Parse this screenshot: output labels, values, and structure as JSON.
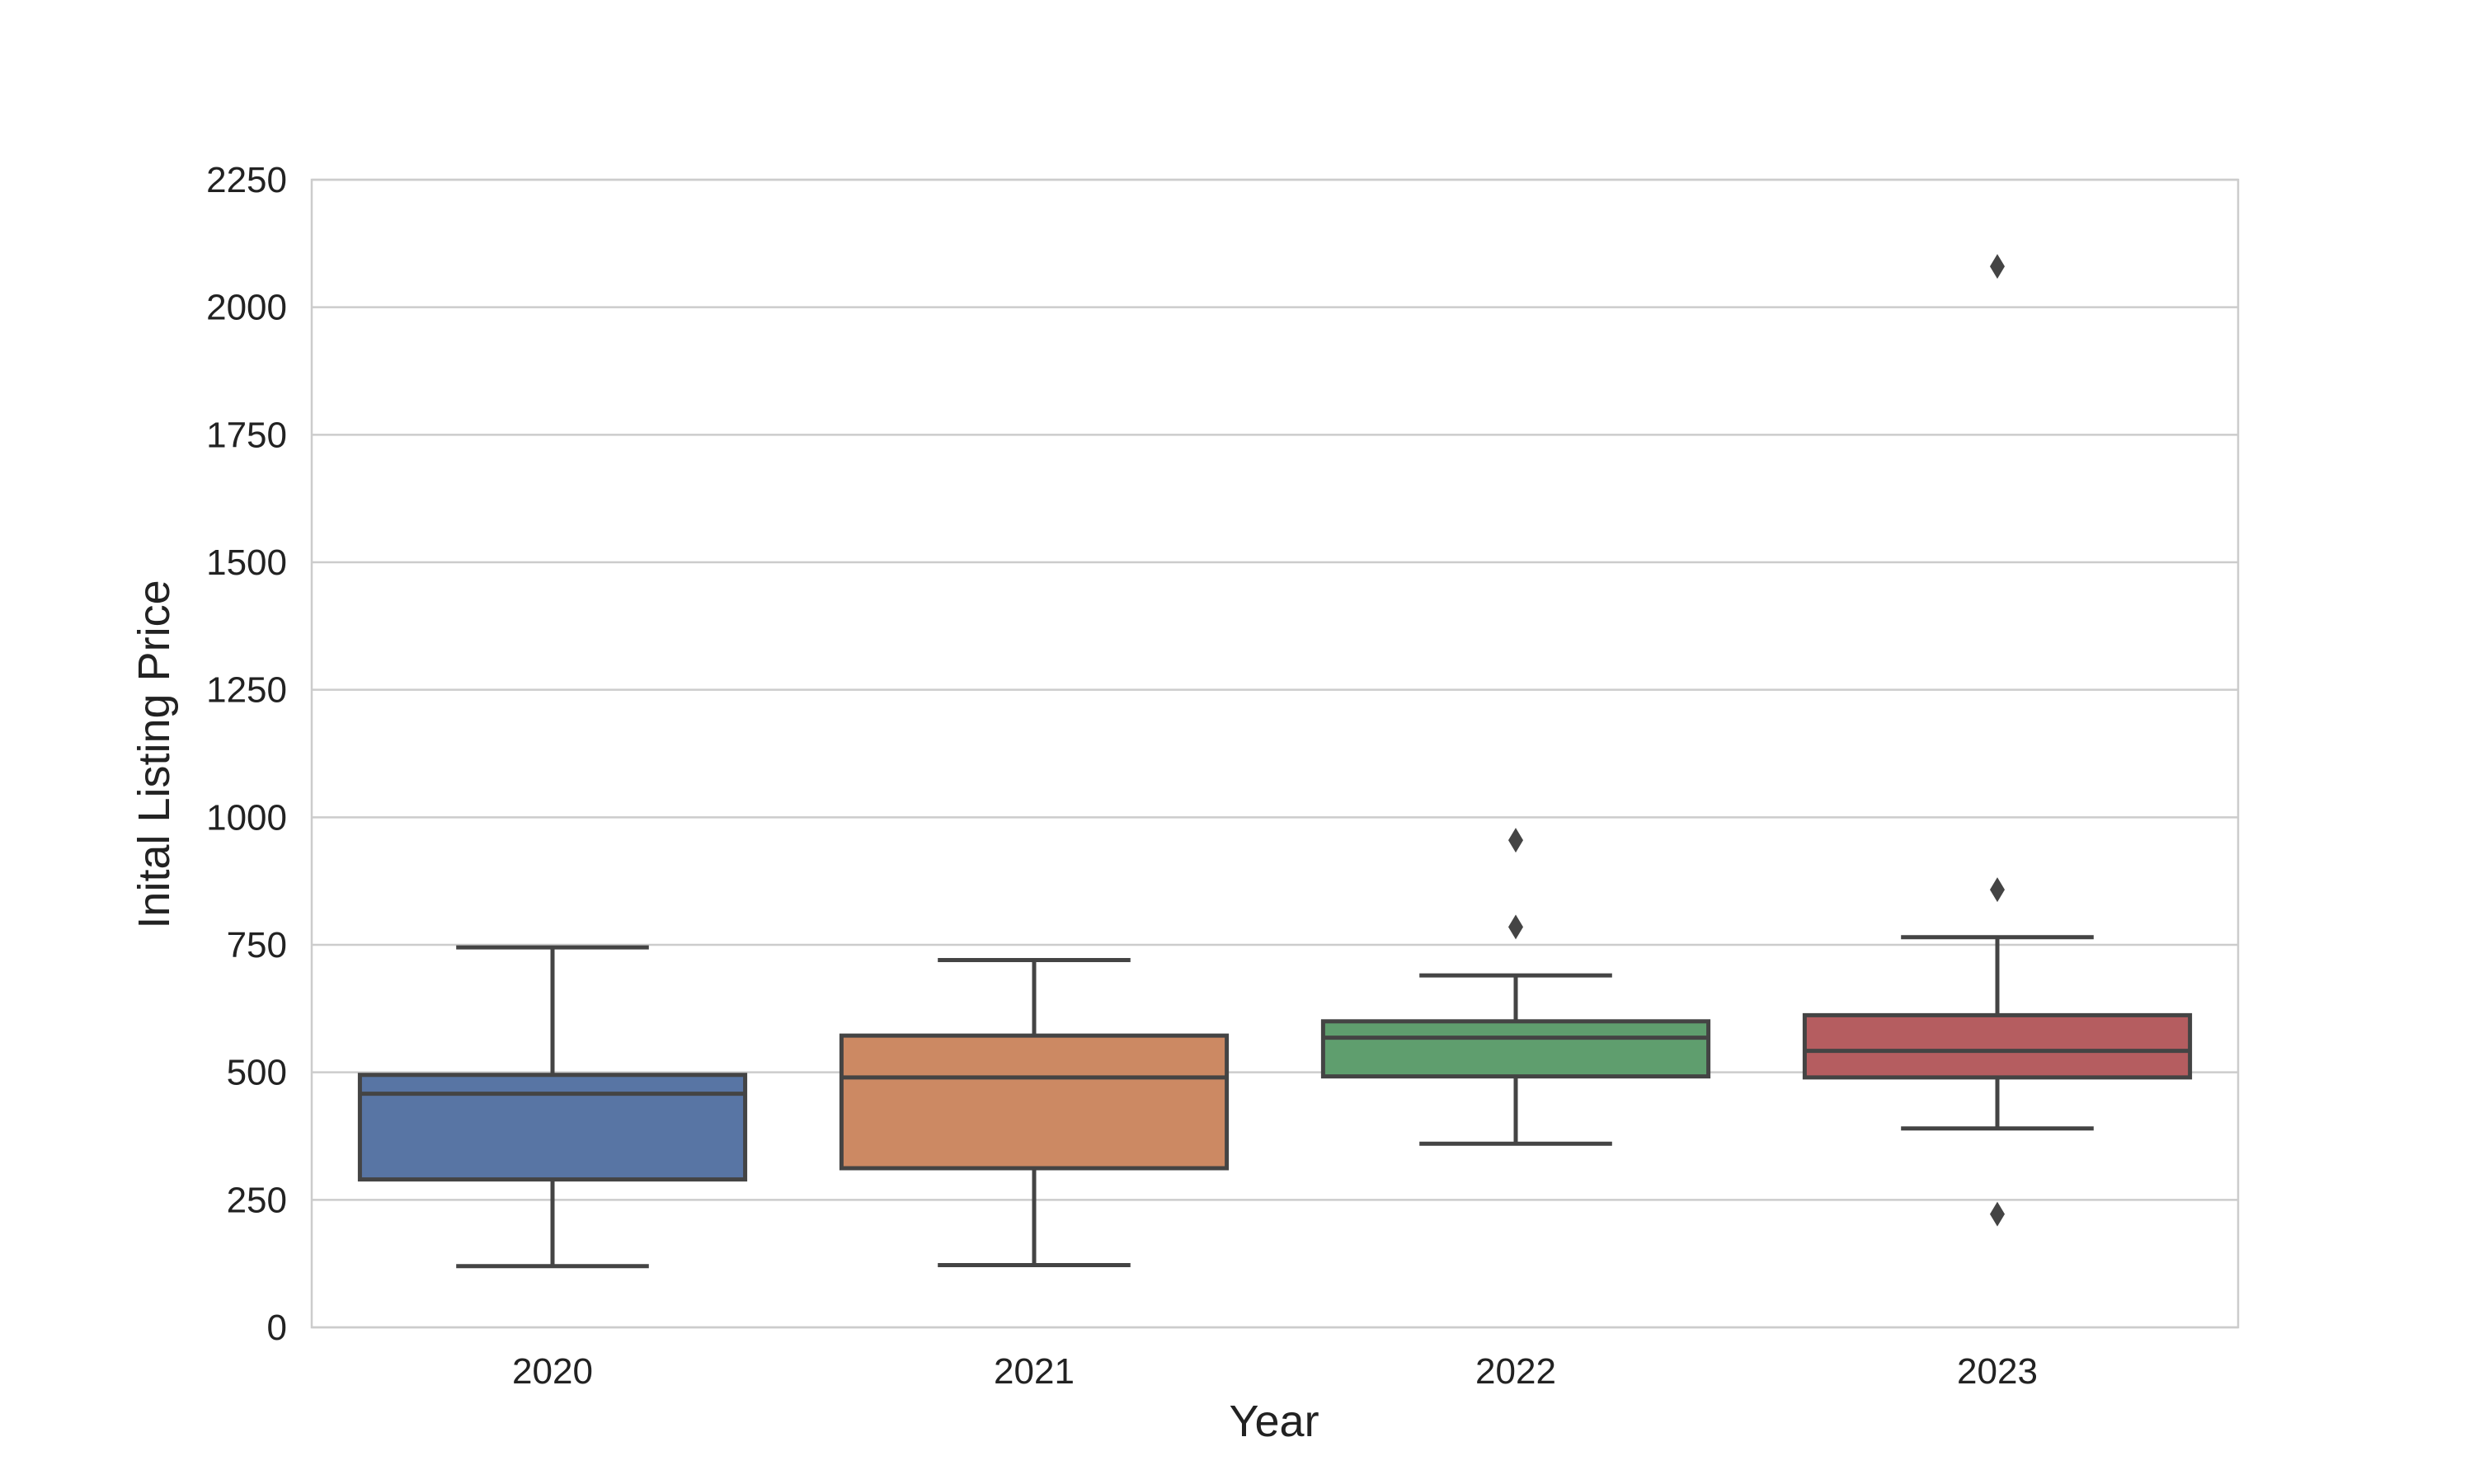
{
  "chart_data": {
    "type": "boxplot",
    "xlabel": "Year",
    "ylabel": "Inital Listing Price",
    "ylim": [
      0,
      2250
    ],
    "yticks": [
      0,
      250,
      500,
      750,
      1000,
      1250,
      1500,
      1750,
      2000,
      2250
    ],
    "grid": "horizontal",
    "categories": [
      "2020",
      "2021",
      "2022",
      "2023"
    ],
    "boxes": [
      {
        "category": "2020",
        "whisker_low": 120,
        "q1": 290,
        "median": 458,
        "q3": 495,
        "whisker_high": 745,
        "outliers": [],
        "color": "#5875a4"
      },
      {
        "category": "2021",
        "whisker_low": 122,
        "q1": 312,
        "median": 490,
        "q3": 572,
        "whisker_high": 720,
        "outliers": [],
        "color": "#cc8963"
      },
      {
        "category": "2022",
        "whisker_low": 360,
        "q1": 492,
        "median": 568,
        "q3": 600,
        "whisker_high": 690,
        "outliers": [
          785,
          955
        ],
        "color": "#5f9e6e"
      },
      {
        "category": "2023",
        "whisker_low": 390,
        "q1": 490,
        "median": 542,
        "q3": 612,
        "whisker_high": 765,
        "outliers": [
          222,
          858,
          2080
        ],
        "color": "#b55d60"
      }
    ],
    "line_color": "#444444",
    "grid_color": "#cccccc",
    "frame_color": "#cccccc"
  }
}
